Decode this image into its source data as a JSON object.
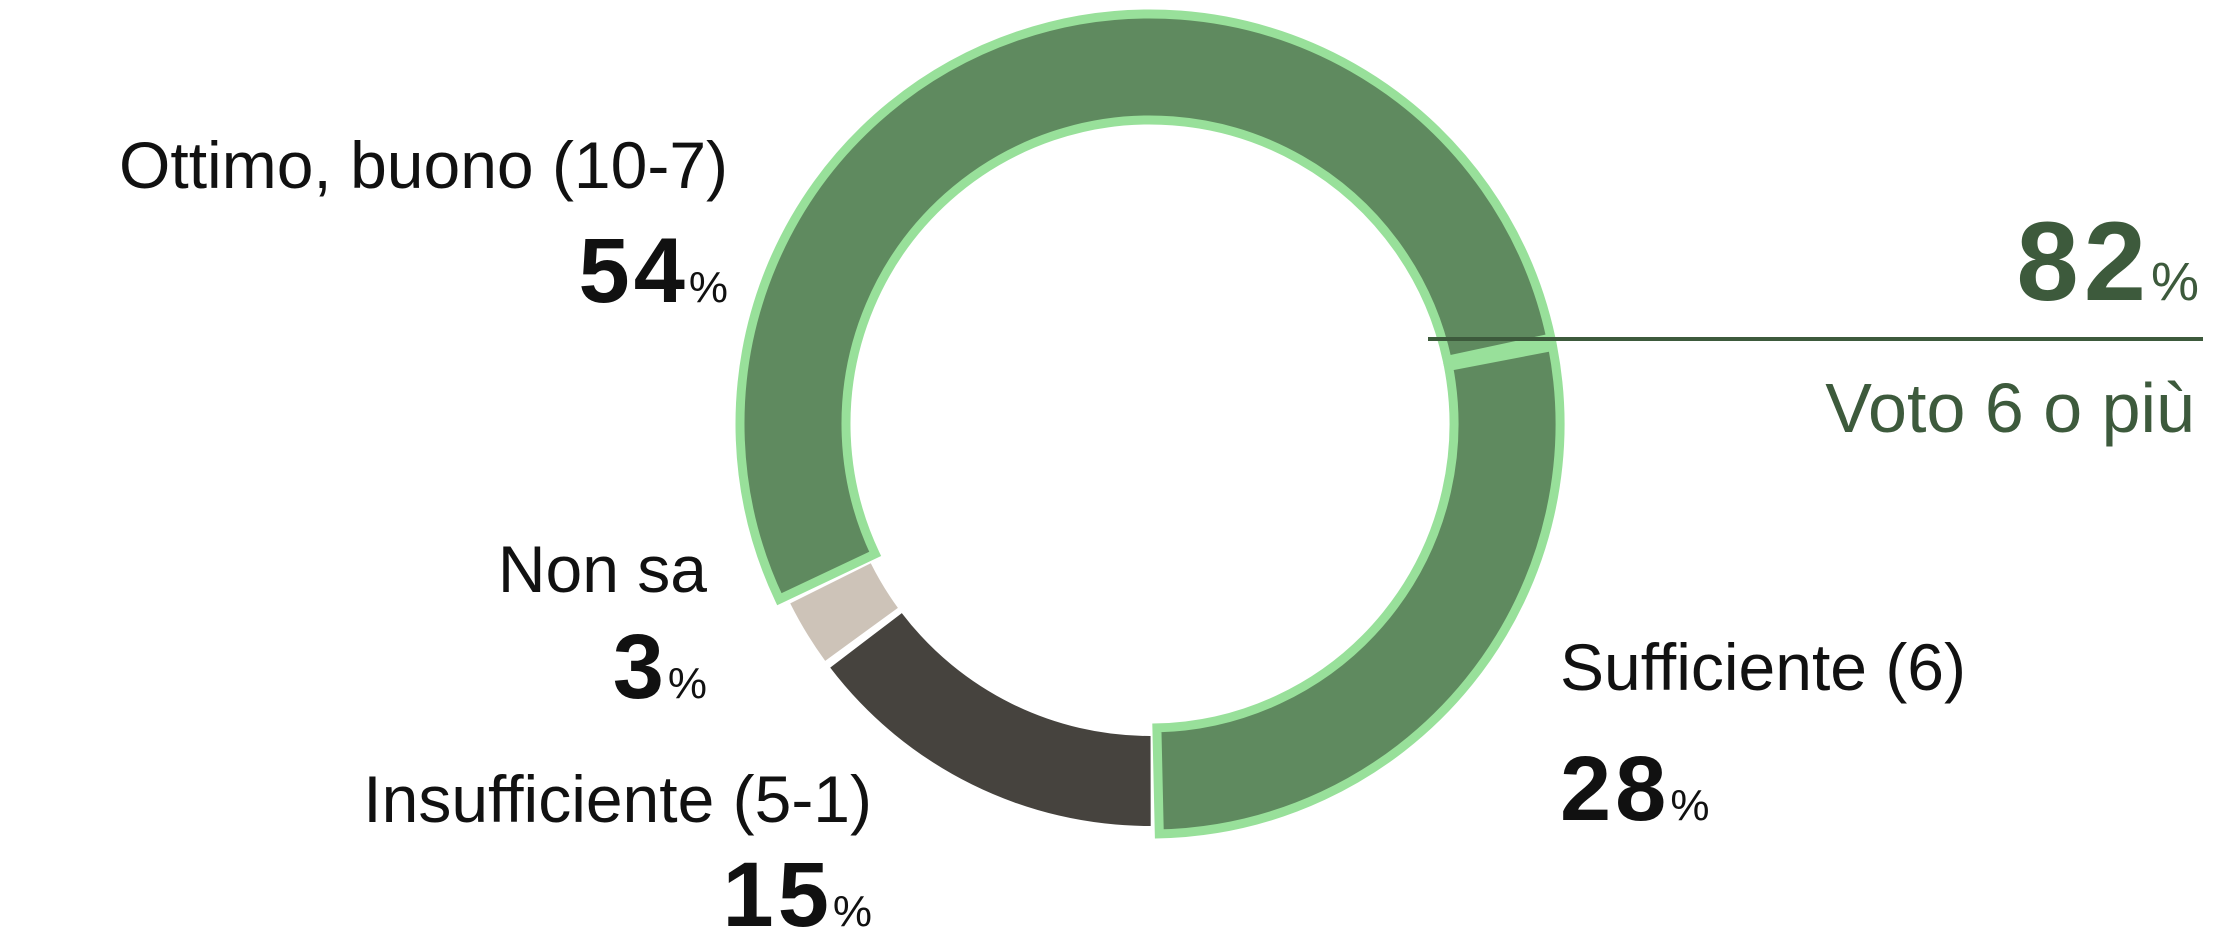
{
  "chart_data": {
    "type": "donut",
    "categories": [
      "Sufficiente (6)",
      "Insufficiente (5-1)",
      "Non sa",
      "Ottimo, buono (10-7)"
    ],
    "values": [
      28,
      15,
      3,
      54
    ],
    "unit": "%",
    "colors": [
      "#5f8a5f",
      "#46433e",
      "#cdc3b8",
      "#5f8a5f"
    ],
    "annotation": {
      "value": 82,
      "label": "Voto 6 o più"
    }
  }
}
